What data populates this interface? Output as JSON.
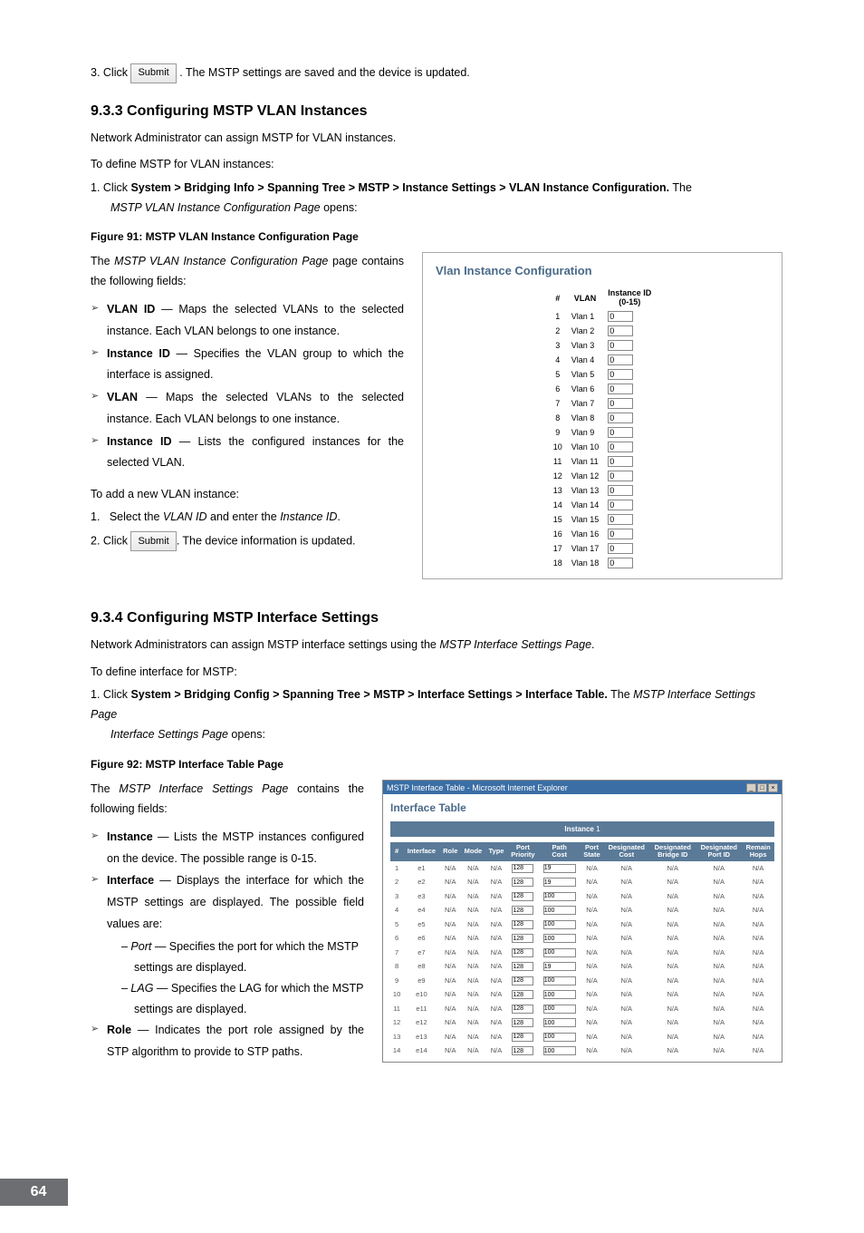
{
  "page_number": "64",
  "step3": {
    "prefix": "3.  Click ",
    "button": "Submit",
    "suffix": ". The MSTP settings are saved and the device is updated."
  },
  "sec933": {
    "heading": "9.3.3   Configuring MSTP VLAN Instances",
    "intro": "Network Administrator can assign MSTP for VLAN instances.",
    "todef": "To define MSTP for VLAN instances:",
    "step1_a": "1.   Click ",
    "step1_b": "System > Bridging Info > Spanning Tree > MSTP > Instance Settings > VLAN Instance Configuration.",
    "step1_c": " The ",
    "step1_d": "MSTP VLAN Instance Configuration Page",
    "step1_e": " opens:",
    "figcap": "Figure 91: MSTP VLAN Instance Configuration Page",
    "leftp": "The MSTP VLAN Instance Configuration Page page contains the following fields:",
    "bullets": [
      {
        "term": "VLAN ID",
        "desc": " — Maps the selected VLANs to the selected instance. Each VLAN belongs to one instance."
      },
      {
        "term": "Instance ID",
        "desc": " — Specifies the VLAN group to which the interface is assigned."
      },
      {
        "term": "VLAN",
        "desc": " — Maps the selected VLANs to the selected instance. Each VLAN belongs to one instance."
      },
      {
        "term": "Instance ID",
        "desc": " — Lists the configured instances for the selected VLAN."
      }
    ],
    "addline": "To add a new VLAN instance:",
    "add1": "1.   Select the VLAN ID and enter the Instance ID.",
    "add2_a": "2.   Click ",
    "add2_btn": "Submit",
    "add2_b": ". The device information is updated."
  },
  "vlan_widget": {
    "title": "Vlan Instance Configuration",
    "col_num": "#",
    "col_vlan": "VLAN",
    "col_inst": "Instance ID (0-15)",
    "rows": [
      {
        "n": "1",
        "v": "Vlan 1",
        "i": "0"
      },
      {
        "n": "2",
        "v": "Vlan 2",
        "i": "0"
      },
      {
        "n": "3",
        "v": "Vlan 3",
        "i": "0"
      },
      {
        "n": "4",
        "v": "Vlan 4",
        "i": "0"
      },
      {
        "n": "5",
        "v": "Vlan 5",
        "i": "0"
      },
      {
        "n": "6",
        "v": "Vlan 6",
        "i": "0"
      },
      {
        "n": "7",
        "v": "Vlan 7",
        "i": "0"
      },
      {
        "n": "8",
        "v": "Vlan 8",
        "i": "0"
      },
      {
        "n": "9",
        "v": "Vlan 9",
        "i": "0"
      },
      {
        "n": "10",
        "v": "Vlan 10",
        "i": "0"
      },
      {
        "n": "11",
        "v": "Vlan 11",
        "i": "0"
      },
      {
        "n": "12",
        "v": "Vlan 12",
        "i": "0"
      },
      {
        "n": "13",
        "v": "Vlan 13",
        "i": "0"
      },
      {
        "n": "14",
        "v": "Vlan 14",
        "i": "0"
      },
      {
        "n": "15",
        "v": "Vlan 15",
        "i": "0"
      },
      {
        "n": "16",
        "v": "Vlan 16",
        "i": "0"
      },
      {
        "n": "17",
        "v": "Vlan 17",
        "i": "0"
      },
      {
        "n": "18",
        "v": "Vlan 18",
        "i": "0"
      }
    ]
  },
  "sec934": {
    "heading": "9.3.4   Configuring MSTP Interface Settings",
    "intro": "Network Administrators can assign MSTP interface settings using the MSTP Interface Settings Page.",
    "todef": "To define interface for MSTP:",
    "step1_a": "1.   Click ",
    "step1_b": "System > Bridging Config > Spanning Tree > MSTP > Interface Settings > Interface Table.",
    "step1_c": " The ",
    "step1_d": "MSTP Interface Settings Page",
    "step1_e": " opens:",
    "figcap": "Figure 92: MSTP Interface Table Page",
    "leftp": "The MSTP Interface Settings Page contains the following fields:",
    "b1_term": "Instance",
    "b1_desc": " — Lists the MSTP instances configured on the device. The possible range is 0-15.",
    "b2_term": "Interface",
    "b2_desc": " — Displays the interface for which the MSTP settings are displayed. The possible field values are:",
    "b2_s1": "– Port — Specifies the port for which the MSTP settings are displayed.",
    "b2_s2": "– LAG — Specifies the LAG for which the MSTP settings are displayed.",
    "b3_term": "Role",
    "b3_desc": " — Indicates the port role assigned by the STP algorithm to provide to STP paths."
  },
  "iface_widget": {
    "wintitle": "MSTP Interface Table - Microsoft Internet Explorer",
    "title": "Interface Table",
    "instance_label": "Instance",
    "instance_val": "1",
    "headers": [
      "#",
      "Interface",
      "Role",
      "Mode",
      "Type",
      "Port Priority",
      "Path Cost",
      "Port State",
      "Designated Cost",
      "Designated Bridge ID",
      "Designated Port ID",
      "Remain Hops"
    ],
    "rows": [
      {
        "n": "1",
        "if": "e1",
        "pp": "128",
        "pc": "19"
      },
      {
        "n": "2",
        "if": "e2",
        "pp": "128",
        "pc": "19"
      },
      {
        "n": "3",
        "if": "e3",
        "pp": "128",
        "pc": "100"
      },
      {
        "n": "4",
        "if": "e4",
        "pp": "128",
        "pc": "100"
      },
      {
        "n": "5",
        "if": "e5",
        "pp": "128",
        "pc": "100"
      },
      {
        "n": "6",
        "if": "e6",
        "pp": "128",
        "pc": "100"
      },
      {
        "n": "7",
        "if": "e7",
        "pp": "128",
        "pc": "100"
      },
      {
        "n": "8",
        "if": "e8",
        "pp": "128",
        "pc": "19"
      },
      {
        "n": "9",
        "if": "e9",
        "pp": "128",
        "pc": "100"
      },
      {
        "n": "10",
        "if": "e10",
        "pp": "128",
        "pc": "100"
      },
      {
        "n": "11",
        "if": "e11",
        "pp": "128",
        "pc": "100"
      },
      {
        "n": "12",
        "if": "e12",
        "pp": "128",
        "pc": "100"
      },
      {
        "n": "13",
        "if": "e13",
        "pp": "128",
        "pc": "100"
      },
      {
        "n": "14",
        "if": "e14",
        "pp": "128",
        "pc": "100"
      }
    ],
    "na": "N/A"
  }
}
